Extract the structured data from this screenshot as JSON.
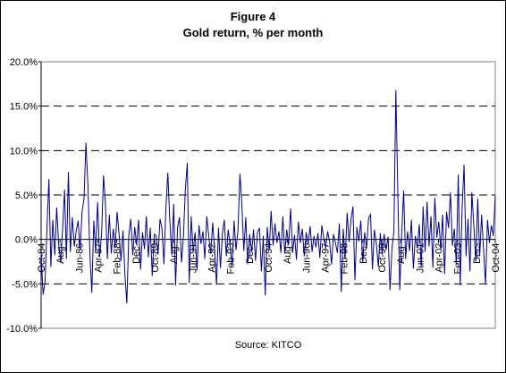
{
  "chart_data": {
    "type": "line",
    "title": "Figure 4",
    "subtitle": "Gold return, % per month",
    "source": "Source:  KITCO",
    "xlabel": "",
    "ylabel": "",
    "ylim": [
      -10,
      20
    ],
    "y_step": 5,
    "y_tick_labels": [
      "20.0%",
      "15.0%",
      "10.0%",
      "5.0%",
      "0.0%",
      "-5.0%",
      "-10.0%"
    ],
    "gridlines": "dashed at 15%, 10%, 5% and -5%",
    "x_tick_labels": [
      "Oct-84",
      "Aug-",
      "Jun-86",
      "Apr-87",
      "Feb-88",
      "Dec-",
      "Oct-89",
      "Aug-",
      "Jun-91",
      "Apr-92",
      "Feb-93",
      "Dec-",
      "Oct-94",
      "Aug-",
      "Jun-96",
      "Apr-97",
      "Feb-98",
      "Dec-",
      "Oct-99",
      "Aug-",
      "Jun-01",
      "Apr-02",
      "Feb-03",
      "Dec-",
      "Oct-04"
    ],
    "colors": {
      "line": "#00008b",
      "axis": "#000000",
      "grid": "#000000"
    },
    "series": [
      {
        "values": [
          -1.5,
          -6.2,
          -4.8,
          1.2,
          6.8,
          -3.1,
          2.2,
          -1.8,
          3.6,
          -0.5,
          -2.5,
          1.1,
          5.6,
          -2.2,
          7.6,
          -1.4,
          2.5,
          -0.8,
          0.9,
          2.1,
          -1.2,
          3.1,
          4.6,
          10.9,
          6.2,
          -1.5,
          -6.0,
          2.1,
          -1.3,
          4.2,
          -2.0,
          0.5,
          7.2,
          4.1,
          -2.2,
          2.8,
          -1.6,
          1.2,
          -0.9,
          3.1,
          0.6,
          -2.4,
          1.0,
          -4.1,
          -7.2,
          0.5,
          2.3,
          -1.8,
          1.4,
          -0.6,
          2.2,
          -3.4,
          0.8,
          -1.1,
          2.6,
          -2.0,
          1.3,
          -4.1,
          0.6,
          0.4,
          -1.7,
          2.3,
          1.2,
          -2.8,
          3.4,
          7.5,
          2.3,
          -1.8,
          4.0,
          -5.2,
          1.3,
          2.5,
          -2.6,
          0.3,
          5.6,
          8.6,
          -4.9,
          2.6,
          -1.4,
          0.8,
          -3.5,
          1.6,
          -0.5,
          0.9,
          -2.2,
          2.6,
          0.4,
          -1.6,
          1.9,
          -1.0,
          -5.1,
          1.3,
          -3.2,
          0.7,
          2.2,
          -1.9,
          1.1,
          -0.8,
          -2.9,
          2.1,
          -1.2,
          1.0,
          7.4,
          3.8,
          -1.3,
          2.5,
          -2.8,
          0.6,
          -1.4,
          1.1,
          -2.4,
          0.8,
          1.3,
          -3.6,
          0.4,
          -6.3,
          1.4,
          -1.2,
          3.2,
          -0.7,
          1.8,
          -0.4,
          0.9,
          -1.5,
          2.6,
          -1.6,
          1.1,
          -0.6,
          3.5,
          -1.5,
          0.5,
          -2.3,
          2.0,
          -0.4,
          1.2,
          -1.9,
          0.8,
          -0.5,
          1.5,
          -1.4,
          0.4,
          -0.9,
          0.7,
          -2.1,
          1.6,
          0.2,
          -1.0,
          0.9,
          -0.3,
          -2.8,
          0.6,
          -0.4,
          -1.5,
          1.8,
          -5.9,
          1.2,
          -2.2,
          3.0,
          -0.3,
          2.3,
          3.7,
          -4.6,
          1.4,
          -0.2,
          2.1,
          -2.6,
          0.8,
          -1.0,
          2.4,
          2.8,
          -3.4,
          1.1,
          -0.5,
          -3.1,
          0.7,
          -1.7,
          0.6,
          -1.2,
          0.3,
          -5.7,
          -1.1,
          0.9,
          16.8,
          5.1,
          -5.7,
          0.6,
          5.5,
          -2.2,
          0.9,
          -1.3,
          2.2,
          -3.3,
          0.4,
          -1.0,
          1.7,
          -3.1,
          3.7,
          -1.4,
          4.2,
          -0.8,
          2.6,
          -3.2,
          4.7,
          0.2,
          2.0,
          -1.1,
          2.8,
          -3.9,
          3.1,
          1.3,
          5.3,
          -0.7,
          1.2,
          -2.8,
          7.3,
          -5.2,
          3.6,
          8.4,
          -1.9,
          2.3,
          -3.6,
          5.3,
          1.6,
          -2.5,
          4.6,
          -1.9,
          2.8,
          -1.1,
          -5.1,
          2.2,
          -0.4,
          1.6,
          0.4,
          4.9
        ]
      }
    ]
  }
}
